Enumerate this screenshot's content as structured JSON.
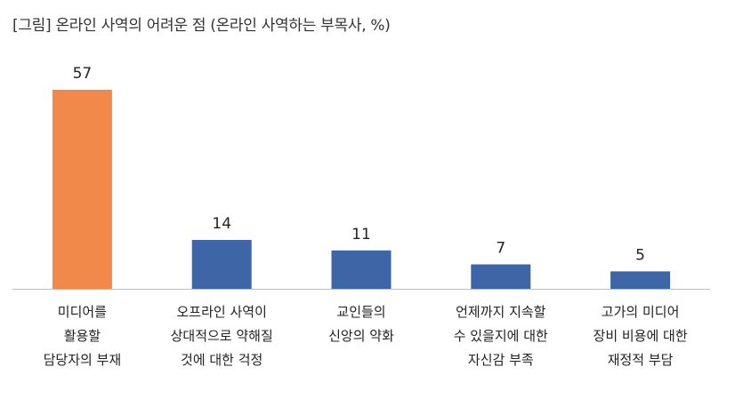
{
  "chart_data": {
    "type": "bar",
    "title": "[그림] 온라인 사역의 어려운 점 (온라인 사역하는 부목사, %)",
    "categories": [
      [
        "미디어를",
        "활용할",
        "담당자의 부재"
      ],
      [
        "오프라인 사역이",
        "상대적으로 약해질",
        "것에 대한 걱정"
      ],
      [
        "교인들의",
        "신앙의 약화"
      ],
      [
        "언제까지 지속할",
        "수 있을지에 대한",
        "자신감 부족"
      ],
      [
        "고가의 미디어",
        "장비 비용에 대한",
        "재정적 부담"
      ]
    ],
    "values": [
      57,
      14,
      11,
      7,
      5
    ],
    "colors": [
      "#F0894A",
      "#3E66A6",
      "#3E66A6",
      "#3E66A6",
      "#3E66A6"
    ],
    "data_labels": [
      "57",
      "14",
      "11",
      "7",
      "5"
    ],
    "ylim": [
      0,
      57
    ],
    "grid": false,
    "axis_color": "#BFBFBF"
  }
}
